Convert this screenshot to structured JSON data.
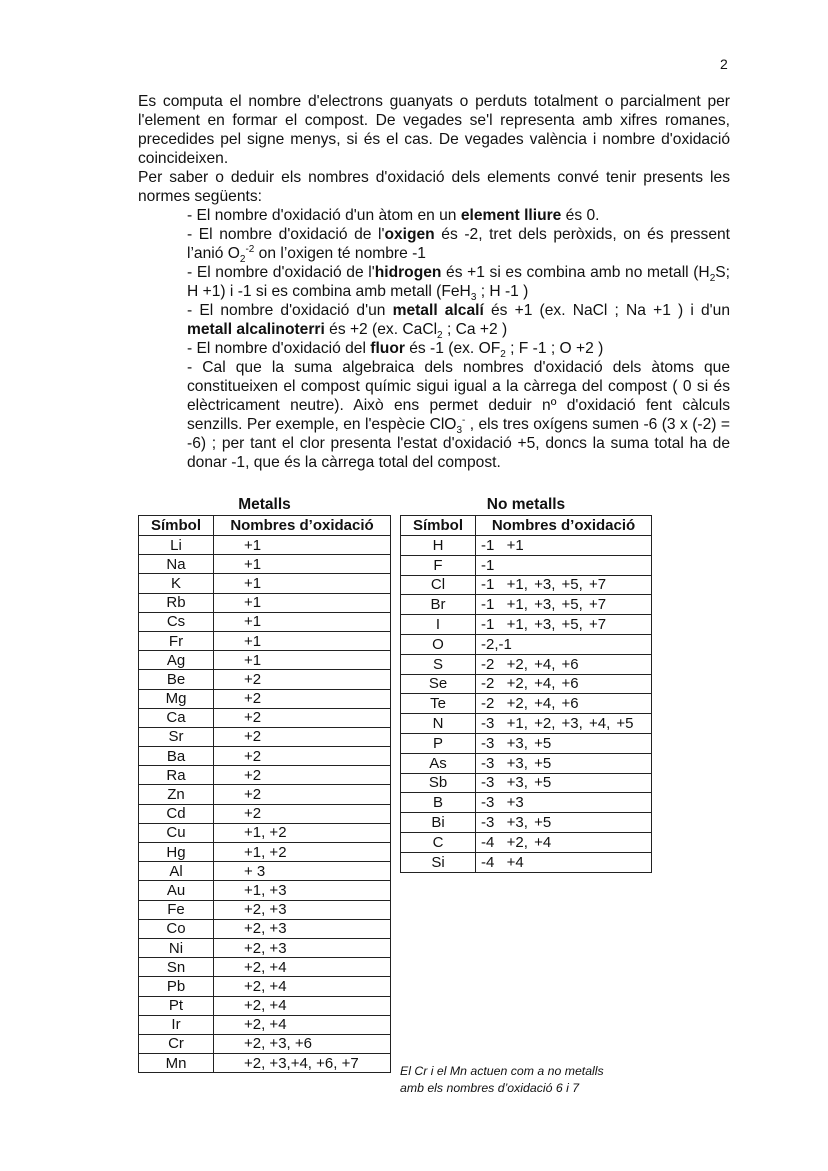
{
  "page_number": "2",
  "paragraphs": [
    {
      "indent": false,
      "segments": [
        {
          "t": "Es computa el nombre d'electrons guanyats o perduts totalment o parcialment per l'element en formar el compost. De vegades se'l representa amb xifres romanes, precedides pel signe menys, si és el cas. De vegades valència i nombre d'oxidació coincideixen."
        }
      ]
    },
    {
      "indent": false,
      "segments": [
        {
          "t": "Per saber o deduir els nombres d'oxidació dels elements convé tenir presents les normes següents:"
        }
      ]
    },
    {
      "indent": true,
      "segments": [
        {
          "t": "- El nombre d'oxidació d'un àtom en un "
        },
        {
          "t": "element lliure",
          "s": "b"
        },
        {
          "t": " és 0."
        }
      ]
    },
    {
      "indent": true,
      "segments": [
        {
          "t": "- El nombre d'oxidació de l'"
        },
        {
          "t": "oxigen",
          "s": "b"
        },
        {
          "t": " és -2, tret dels peròxids, on és pressent l’anió O"
        },
        {
          "t": "2",
          "s": "sub"
        },
        {
          "t": "-2",
          "s": "sup"
        },
        {
          "t": " on l’oxigen té nombre -1"
        }
      ]
    },
    {
      "indent": true,
      "segments": [
        {
          "t": "- El nombre d'oxidació de l'"
        },
        {
          "t": "hidrogen",
          "s": "b"
        },
        {
          "t": " és +1 si es combina amb no metall (H"
        },
        {
          "t": "2",
          "s": "sub"
        },
        {
          "t": "S; H +1) i -1 si es combina amb metall (FeH"
        },
        {
          "t": "3",
          "s": "sub"
        },
        {
          "t": " ; H -1 )"
        }
      ]
    },
    {
      "indent": true,
      "segments": [
        {
          "t": "- El nombre d'oxidació d'un "
        },
        {
          "t": "metall alcalí",
          "s": "b"
        },
        {
          "t": " és +1 (ex. NaCl ; Na +1 ) i d'un "
        },
        {
          "t": "metall alcalinoterri",
          "s": "b"
        },
        {
          "t": " és +2 (ex. CaCl"
        },
        {
          "t": "2",
          "s": "sub"
        },
        {
          "t": " ; Ca +2 )"
        }
      ]
    },
    {
      "indent": true,
      "segments": [
        {
          "t": "- El nombre d'oxidació del "
        },
        {
          "t": "fluor",
          "s": "b"
        },
        {
          "t": " és -1 (ex. OF"
        },
        {
          "t": "2",
          "s": "sub"
        },
        {
          "t": " ; F -1 ; O +2 )"
        }
      ]
    },
    {
      "indent": true,
      "segments": [
        {
          "t": "- Cal que la suma algebraica dels nombres d'oxidació dels àtoms que constitueixen el compost químic sigui igual a la càrrega del compost ( 0 si és elèctricament neutre). Això ens permet deduir nº d'oxidació fent càlculs senzills. Per exemple, en l'espècie ClO"
        },
        {
          "t": "3",
          "s": "sub"
        },
        {
          "t": "-",
          "s": "sup"
        },
        {
          "t": " , els tres oxígens sumen -6 (3 x (-2) = -6) ; per tant el clor presenta l'estat d'oxidació +5, doncs la suma total ha de donar -1, que és la càrrega total del compost."
        }
      ]
    }
  ],
  "metals_table": {
    "caption": "Metalls",
    "headers": [
      "Símbol",
      "Nombres d’oxidació"
    ],
    "rows": [
      [
        "Li",
        "+1"
      ],
      [
        "Na",
        "+1"
      ],
      [
        "K",
        "+1"
      ],
      [
        "Rb",
        "+1"
      ],
      [
        "Cs",
        "+1"
      ],
      [
        "Fr",
        "+1"
      ],
      [
        "Ag",
        "+1"
      ],
      [
        "Be",
        "+2"
      ],
      [
        "Mg",
        "+2"
      ],
      [
        "Ca",
        "+2"
      ],
      [
        "Sr",
        "+2"
      ],
      [
        "Ba",
        "+2"
      ],
      [
        "Ra",
        "+2"
      ],
      [
        "Zn",
        "+2"
      ],
      [
        "Cd",
        "+2"
      ],
      [
        "Cu",
        "+1, +2"
      ],
      [
        "Hg",
        "+1, +2"
      ],
      [
        "Al",
        "+ 3"
      ],
      [
        "Au",
        "+1, +3"
      ],
      [
        "Fe",
        "+2, +3"
      ],
      [
        "Co",
        "+2, +3"
      ],
      [
        "Ni",
        "+2, +3"
      ],
      [
        "Sn",
        "+2, +4"
      ],
      [
        "Pb",
        "+2, +4"
      ],
      [
        "Pt",
        "+2, +4"
      ],
      [
        "Ir",
        "+2, +4"
      ],
      [
        "Cr",
        "+2, +3, +6"
      ],
      [
        "Mn",
        "+2, +3,+4, +6, +7"
      ]
    ]
  },
  "nonmetals_table": {
    "caption": "No metalls",
    "headers": [
      "Símbol",
      "Nombres d’oxidació"
    ],
    "rows": [
      [
        "H",
        "-1  +1"
      ],
      [
        "F",
        "-1"
      ],
      [
        "Cl",
        "-1  +1, +3, +5, +7"
      ],
      [
        "Br",
        "-1  +1, +3, +5, +7"
      ],
      [
        "I",
        "-1  +1, +3, +5, +7"
      ],
      [
        "O",
        "-2,-1"
      ],
      [
        "S",
        "-2  +2, +4, +6"
      ],
      [
        "Se",
        "-2  +2, +4, +6"
      ],
      [
        "Te",
        "-2  +2, +4, +6"
      ],
      [
        "N",
        "-3  +1, +2, +3, +4, +5"
      ],
      [
        "P",
        "-3  +3, +5"
      ],
      [
        "As",
        "-3  +3, +5"
      ],
      [
        "Sb",
        "-3  +3, +5"
      ],
      [
        "B",
        "-3  +3"
      ],
      [
        "Bi",
        "-3  +3, +5"
      ],
      [
        "C",
        "-4  +2, +4"
      ],
      [
        "Si",
        "-4  +4"
      ]
    ]
  },
  "note": [
    "El Cr i el Mn actuen com a no metalls",
    "amb els nombres d’oxidació 6 i 7"
  ]
}
